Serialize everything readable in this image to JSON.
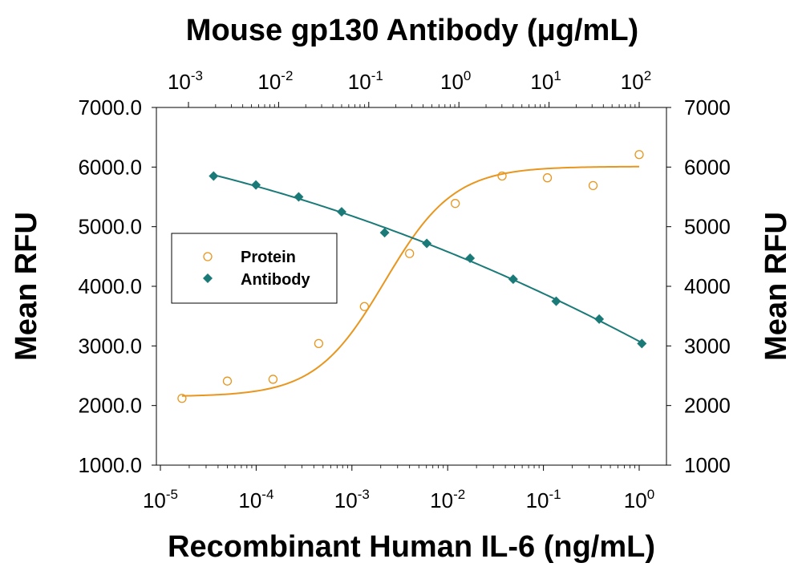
{
  "chart_data": {
    "type": "scatter",
    "title": "Mouse gp130 Antibody (μg/mL)",
    "xlabel": "Recombinant Human IL-6 (ng/mL)",
    "ylabel_left": "Mean RFU",
    "ylabel_right": "Mean RFU",
    "x_scale": "log",
    "xlim": [
      1e-05,
      1
    ],
    "x_top_scale": "log",
    "x_top_lim": [
      0.001,
      100
    ],
    "ylim": [
      1000,
      7000
    ],
    "y_left_ticks": [
      "1000.0",
      "2000.0",
      "3000.0",
      "4000.0",
      "5000.0",
      "6000.0",
      "7000.0"
    ],
    "y_right_ticks": [
      "1000",
      "2000",
      "3000",
      "4000",
      "5000",
      "6000",
      "7000"
    ],
    "x_bottom_ticks": [
      {
        "base": "10",
        "exp": "-5"
      },
      {
        "base": "10",
        "exp": "-4"
      },
      {
        "base": "10",
        "exp": "-3"
      },
      {
        "base": "10",
        "exp": "-2"
      },
      {
        "base": "10",
        "exp": "-1"
      },
      {
        "base": "10",
        "exp": "0"
      }
    ],
    "x_top_ticks": [
      {
        "base": "10",
        "exp": "-3"
      },
      {
        "base": "10",
        "exp": "-2"
      },
      {
        "base": "10",
        "exp": "-1"
      },
      {
        "base": "10",
        "exp": "0"
      },
      {
        "base": "10",
        "exp": "1"
      },
      {
        "base": "10",
        "exp": "2"
      }
    ],
    "legend": {
      "placement": "left",
      "entries": [
        {
          "label": "Protein",
          "marker": "open-circle",
          "color": "#E8961E"
        },
        {
          "label": "Antibody",
          "marker": "filled-diamond",
          "color": "#1A7A78"
        }
      ]
    },
    "series": [
      {
        "name": "Protein",
        "axis": "bottom",
        "color": "#E8961E",
        "marker": "open-circle",
        "fit": "sigmoid",
        "x": [
          1.68e-05,
          5e-05,
          0.00015,
          0.00045,
          0.00135,
          0.004,
          0.012,
          0.037,
          0.11,
          0.33,
          1.0
        ],
        "y": [
          2120,
          2410,
          2440,
          3040,
          3660,
          4550,
          5390,
          5850,
          5820,
          5690,
          6210
        ]
      },
      {
        "name": "Antibody",
        "axis": "top",
        "color": "#1A7A78",
        "marker": "filled-diamond",
        "fit": "curve",
        "x": [
          0.0019,
          0.0056,
          0.0167,
          0.05,
          0.15,
          0.44,
          1.33,
          4.0,
          12.0,
          36.0,
          107.0
        ],
        "y": [
          5850,
          5700,
          5500,
          5250,
          4900,
          4720,
          4470,
          4120,
          3750,
          3450,
          3040
        ]
      }
    ]
  }
}
